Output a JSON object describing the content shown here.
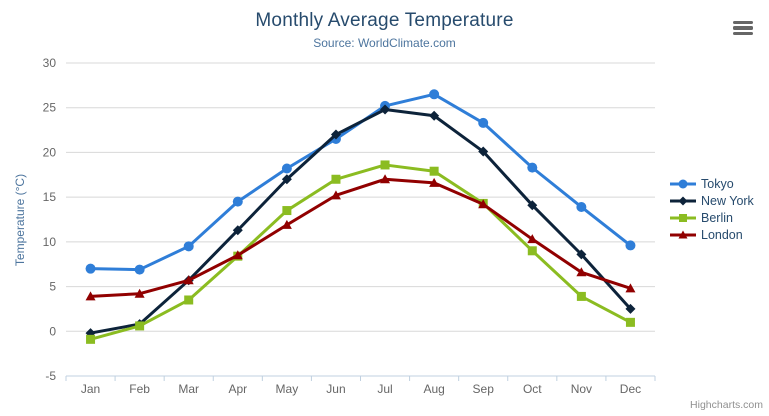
{
  "chart_data": {
    "type": "line",
    "title": "Monthly Average Temperature",
    "subtitle": "Source: WorldClimate.com",
    "xlabel": "",
    "ylabel": "Temperature (°C)",
    "categories": [
      "Jan",
      "Feb",
      "Mar",
      "Apr",
      "May",
      "Jun",
      "Jul",
      "Aug",
      "Sep",
      "Oct",
      "Nov",
      "Dec"
    ],
    "yticks": [
      30,
      25,
      20,
      15,
      10,
      5,
      0,
      -5
    ],
    "ylim": [
      -5,
      30
    ],
    "grid": true,
    "legend_position": "right",
    "series": [
      {
        "name": "Tokyo",
        "color": "#2f7ed8",
        "marker": "circle",
        "values": [
          7.0,
          6.9,
          9.5,
          14.5,
          18.2,
          21.5,
          25.2,
          26.5,
          23.3,
          18.3,
          13.9,
          9.6
        ]
      },
      {
        "name": "New York",
        "color": "#0d233a",
        "marker": "diamond",
        "values": [
          -0.2,
          0.8,
          5.7,
          11.3,
          17.0,
          22.0,
          24.8,
          24.1,
          20.1,
          14.1,
          8.6,
          2.5
        ]
      },
      {
        "name": "Berlin",
        "color": "#8bbc21",
        "marker": "square",
        "values": [
          -0.9,
          0.6,
          3.5,
          8.4,
          13.5,
          17.0,
          18.6,
          17.9,
          14.3,
          9.0,
          3.9,
          1.0
        ]
      },
      {
        "name": "London",
        "color": "#910000",
        "marker": "triangle",
        "values": [
          3.9,
          4.2,
          5.7,
          8.5,
          11.9,
          15.2,
          17.0,
          16.6,
          14.2,
          10.3,
          6.6,
          4.8
        ]
      }
    ],
    "grid_color": "#d8d8d8",
    "axis_line_color": "#c0d0e0",
    "tick_label_color": "#666666"
  },
  "export_menu": {
    "icon": "hamburger-menu-icon"
  },
  "credits": {
    "label": "Highcharts.com"
  }
}
